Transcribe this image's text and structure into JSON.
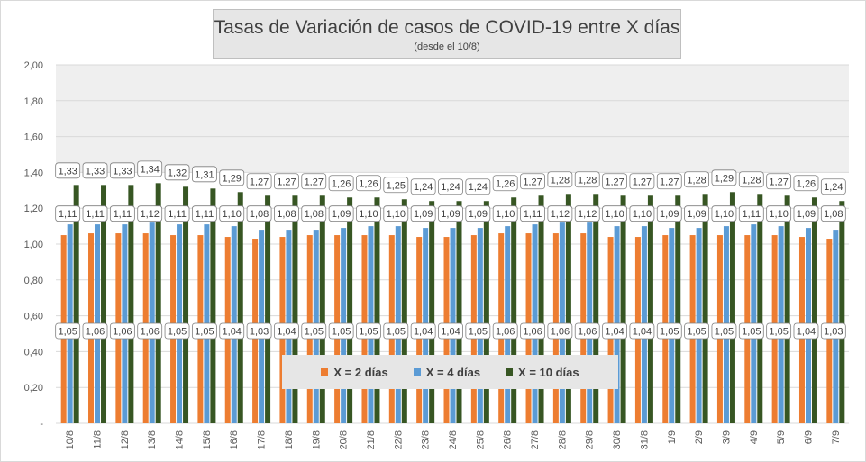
{
  "chart_data": {
    "type": "bar",
    "title": "Tasas de Variación de casos de COVID-19 entre X días",
    "subtitle": "(desde el 10/8)",
    "xlabel": "",
    "ylabel": "",
    "ylim": [
      0,
      2
    ],
    "y_ticks": [
      0,
      0.2,
      0.4,
      0.6,
      0.8,
      1.0,
      1.2,
      1.4,
      1.6,
      1.8,
      2.0
    ],
    "y_tick_labels": [
      "-",
      "0,20",
      "0,40",
      "0,60",
      "0,80",
      "1,00",
      "1,20",
      "1,40",
      "1,60",
      "1,80",
      "2,00"
    ],
    "grid": true,
    "legend_position": "bottom-center",
    "categories": [
      "10/8",
      "11/8",
      "12/8",
      "13/8",
      "14/8",
      "15/8",
      "16/8",
      "17/8",
      "18/8",
      "19/8",
      "20/8",
      "21/8",
      "22/8",
      "23/8",
      "24/8",
      "25/8",
      "26/8",
      "27/8",
      "28/8",
      "29/8",
      "30/8",
      "31/8",
      "1/9",
      "2/9",
      "3/9",
      "4/9",
      "5/9",
      "6/9",
      "7/9"
    ],
    "series": [
      {
        "name": "X = 2 días",
        "color": "#ed7d31",
        "values": [
          1.05,
          1.06,
          1.06,
          1.06,
          1.05,
          1.05,
          1.04,
          1.03,
          1.04,
          1.05,
          1.05,
          1.05,
          1.05,
          1.04,
          1.04,
          1.05,
          1.06,
          1.06,
          1.06,
          1.06,
          1.04,
          1.04,
          1.05,
          1.05,
          1.05,
          1.05,
          1.05,
          1.04,
          1.03
        ],
        "labels": [
          "1,05",
          "1,06",
          "1,06",
          "1,06",
          "1,05",
          "1,05",
          "1,04",
          "1,03",
          "1,04",
          "1,05",
          "1,05",
          "1,05",
          "1,05",
          "1,04",
          "1,04",
          "1,05",
          "1,06",
          "1,06",
          "1,06",
          "1,06",
          "1,04",
          "1,04",
          "1,05",
          "1,05",
          "1,05",
          "1,05",
          "1,05",
          "1,04",
          "1,03"
        ]
      },
      {
        "name": "X = 4 días",
        "color": "#5b9bd5",
        "values": [
          1.11,
          1.11,
          1.11,
          1.12,
          1.11,
          1.11,
          1.1,
          1.08,
          1.08,
          1.08,
          1.09,
          1.1,
          1.1,
          1.09,
          1.09,
          1.09,
          1.1,
          1.11,
          1.12,
          1.12,
          1.1,
          1.1,
          1.09,
          1.09,
          1.1,
          1.11,
          1.1,
          1.09,
          1.08
        ],
        "labels": [
          "1,11",
          "1,11",
          "1,11",
          "1,12",
          "1,11",
          "1,11",
          "1,10",
          "1,08",
          "1,08",
          "1,08",
          "1,09",
          "1,10",
          "1,10",
          "1,09",
          "1,09",
          "1,09",
          "1,10",
          "1,11",
          "1,12",
          "1,12",
          "1,10",
          "1,10",
          "1,09",
          "1,09",
          "1,10",
          "1,11",
          "1,10",
          "1,09",
          "1,08"
        ]
      },
      {
        "name": "X = 10 días",
        "color": "#375623",
        "values": [
          1.33,
          1.33,
          1.33,
          1.34,
          1.32,
          1.31,
          1.29,
          1.27,
          1.27,
          1.27,
          1.26,
          1.26,
          1.25,
          1.24,
          1.24,
          1.24,
          1.26,
          1.27,
          1.28,
          1.28,
          1.27,
          1.27,
          1.27,
          1.28,
          1.29,
          1.28,
          1.27,
          1.26,
          1.24
        ],
        "labels": [
          "1,33",
          "1,33",
          "1,33",
          "1,34",
          "1,32",
          "1,31",
          "1,29",
          "1,27",
          "1,27",
          "1,27",
          "1,26",
          "1,26",
          "1,25",
          "1,24",
          "1,24",
          "1,24",
          "1,26",
          "1,27",
          "1,28",
          "1,28",
          "1,27",
          "1,27",
          "1,27",
          "1,28",
          "1,29",
          "1,28",
          "1,27",
          "1,26",
          "1,24"
        ]
      }
    ]
  }
}
